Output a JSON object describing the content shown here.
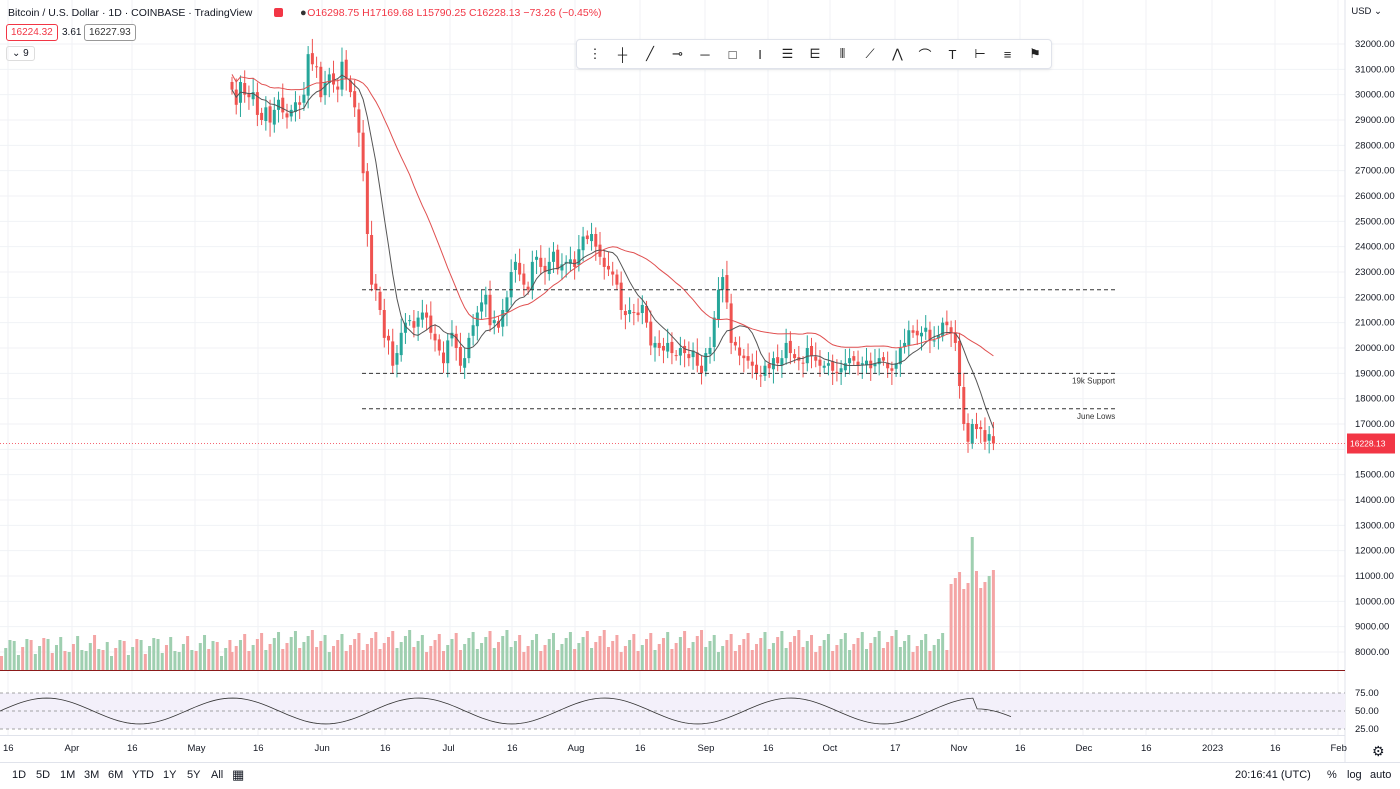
{
  "legend": {
    "symbol": "Bitcoin / U.S. Dollar · 1D · COINBASE · TradingView",
    "open": "O16298.75",
    "high": "H17169.68",
    "low": "L15790.25",
    "close": "C16228.13",
    "change": "−73.26 (−0.45%)",
    "bid": "16224.32",
    "spread": "3.61",
    "ask": "16227.93",
    "indicators_label": "9"
  },
  "currency": "USD",
  "price_ticks": [
    "32000.00",
    "31000.00",
    "30000.00",
    "29000.00",
    "28000.00",
    "27000.00",
    "26000.00",
    "25000.00",
    "24000.00",
    "23000.00",
    "22000.00",
    "21000.00",
    "20000.00",
    "19000.00",
    "18000.00",
    "17000.00",
    "16000.00",
    "15000.00",
    "14000.00",
    "13000.00",
    "12000.00",
    "11000.00",
    "10000.00",
    "9000.00",
    "8000.00"
  ],
  "rsi_ticks": [
    "75.00",
    "50.00",
    "25.00"
  ],
  "current_price_label": "16228.13",
  "time_labels": [
    "16",
    "Apr",
    "16",
    "May",
    "16",
    "Jun",
    "16",
    "Jul",
    "16",
    "Aug",
    "16",
    "Sep",
    "16",
    "Oct",
    "17",
    "Nov",
    "16",
    "Dec",
    "16",
    "2023",
    "16",
    "Feb"
  ],
  "annotations": {
    "support": "19k Support",
    "june": "June Lows"
  },
  "bottom": {
    "ranges": [
      "1D",
      "5D",
      "1M",
      "3M",
      "6M",
      "YTD",
      "1Y",
      "5Y",
      "All"
    ],
    "time": "20:16:41 (UTC)",
    "percent": "%",
    "log": "log",
    "auto": "auto"
  },
  "toolbar_icons": [
    "drag-handle-icon",
    "crosshair-icon",
    "trend-line-icon",
    "horizontal-ray-icon",
    "horizontal-line-icon",
    "rectangle-icon",
    "text-cursor-icon",
    "parallel-channel-icon",
    "pitchfork-icon",
    "long-position-icon",
    "path-icon",
    "polyline-icon",
    "brush-icon",
    "text-icon",
    "measure-icon",
    "fib-retracement-icon",
    "flag-icon"
  ],
  "colors": {
    "up": "#26a69a",
    "down": "#ef5350",
    "ma_fast": "#555555",
    "ma_slow": "#e05050",
    "rsi": "#333333",
    "volume_up": "#9fcfb0",
    "volume_down": "#f4a5a5"
  },
  "chart_data": {
    "type": "candlestick",
    "horizontal_levels": [
      22300,
      19000,
      17600
    ],
    "closes": [
      30200,
      29600,
      30500,
      30000,
      29900,
      30100,
      29200,
      29000,
      29500,
      28900,
      29400,
      29800,
      29300,
      29100,
      29400,
      29700,
      29600,
      30000,
      31600,
      31200,
      31100,
      29900,
      30500,
      30800,
      30400,
      30200,
      31300,
      30600,
      30100,
      29500,
      28500,
      26900,
      24500,
      22500,
      22300,
      21500,
      20400,
      20300,
      19300,
      19800,
      20600,
      21000,
      21100,
      20800,
      21200,
      21400,
      21200,
      20600,
      20300,
      19900,
      19400,
      20300,
      20600,
      20000,
      19300,
      19600,
      20400,
      20900,
      21400,
      21800,
      22100,
      20900,
      21100,
      20800,
      21500,
      22000,
      23000,
      23400,
      22900,
      22500,
      22300,
      23400,
      23600,
      23200,
      23000,
      23400,
      23800,
      23100,
      23300,
      23400,
      23500,
      23200,
      23900,
      24400,
      24300,
      24500,
      24000,
      23600,
      23200,
      23100,
      22900,
      22500,
      21500,
      21300,
      21500,
      21400,
      21300,
      21700,
      21000,
      20100,
      20200,
      20000,
      19900,
      20200,
      19800,
      19700,
      20000,
      19800,
      19600,
      19900,
      19300,
      19000,
      19800,
      20000,
      21200,
      22300,
      22800,
      21800,
      20200,
      20100,
      19700,
      19600,
      19500,
      19300,
      19000,
      18900,
      19300,
      19200,
      19600,
      19400,
      19600,
      20200,
      19800,
      19600,
      19500,
      19400,
      20000,
      19700,
      19500,
      19300,
      19300,
      19400,
      19100,
      19000,
      19200,
      19400,
      19600,
      19500,
      19300,
      19400,
      19500,
      19200,
      19400,
      19600,
      19500,
      19200,
      19100,
      19400,
      20000,
      20200,
      20700,
      20600,
      20500,
      20600,
      20800,
      20300,
      20300,
      20500,
      21000,
      20900,
      20600,
      20200,
      18500,
      17000,
      16300,
      17000,
      16800,
      16800,
      16300,
      16600,
      16230
    ]
  }
}
